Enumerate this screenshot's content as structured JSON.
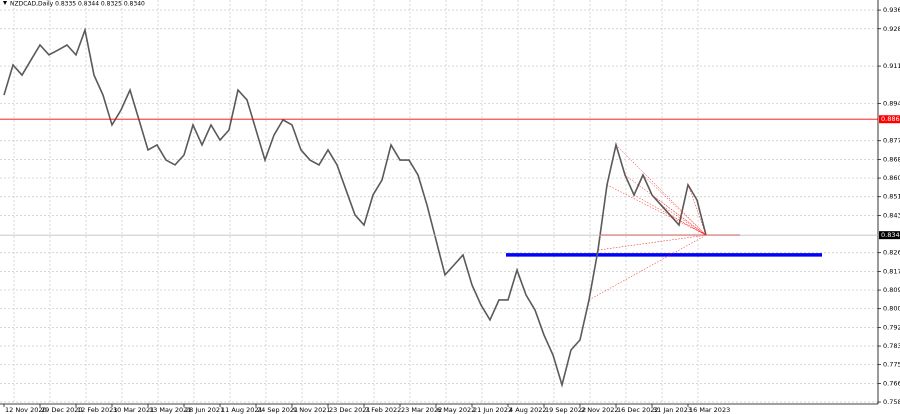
{
  "chart_data": {
    "type": "line",
    "title": "NZDCAD,Daily 0.8335 0.8344 0.8325 0.8340",
    "categories": [
      "12 Nov 2020",
      null,
      null,
      null,
      "29 Dec 2020",
      null,
      null,
      null,
      "12 Feb 2021",
      null,
      null,
      null,
      "30 Mar 2021",
      null,
      null,
      null,
      "13 May 2021",
      null,
      null,
      null,
      "28 Jun 2021",
      null,
      null,
      null,
      "11 Aug 2021",
      null,
      null,
      null,
      "24 Sep 2021",
      null,
      null,
      null,
      "9 Nov 2021",
      null,
      null,
      null,
      "23 Dec 2021",
      null,
      null,
      null,
      "7 Feb 2022",
      null,
      null,
      null,
      "23 Mar 2022",
      null,
      null,
      null,
      "6 May 2022",
      null,
      null,
      null,
      "21 Jun 2022",
      null,
      null,
      null,
      "4 Aug 2022",
      null,
      null,
      null,
      "19 Sep 2022",
      null,
      null,
      null,
      "2 Nov 2022",
      null,
      null,
      null,
      "16 Dec 2022",
      null,
      null,
      null,
      "31 Jan 2023",
      null,
      null,
      null,
      "16 Mar 2023",
      null,
      null
    ],
    "values": [
      0.8978,
      0.9115,
      0.9069,
      0.9138,
      0.9206,
      0.9161,
      0.9183,
      0.9206,
      0.9161,
      0.9274,
      0.9069,
      0.8978,
      0.8842,
      0.891,
      0.9001,
      0.8865,
      0.8728,
      0.8751,
      0.8682,
      0.866,
      0.8705,
      0.8842,
      0.8751,
      0.8842,
      0.8773,
      0.8819,
      0.9001,
      0.8956,
      0.8819,
      0.8682,
      0.8796,
      0.8865,
      0.8842,
      0.8728,
      0.8682,
      0.866,
      0.8728,
      0.866,
      0.8546,
      0.8432,
      0.8386,
      0.8523,
      0.8591,
      0.8751,
      0.8682,
      0.8682,
      0.8614,
      0.8477,
      0.8318,
      0.8159,
      0.8204,
      0.825,
      0.8113,
      0.8022,
      0.7954,
      0.8045,
      0.8045,
      0.8181,
      0.8068,
      0.7999,
      0.7885,
      0.7794,
      0.7658,
      0.7817,
      0.7863,
      0.8045,
      0.8272,
      0.8569,
      0.8751,
      0.8614,
      0.8523,
      0.8614,
      0.8523,
      0.8477,
      0.8432,
      0.8386,
      0.8569,
      0.85,
      0.834
    ],
    "color": "#5a5a5a",
    "ylim": [
      0.7571,
      0.9411
    ],
    "yticks": [
      {
        "value": 0.758,
        "label": "0.7580"
      },
      0.7665,
      {
        "value": 0.775,
        "label": "0.7750"
      },
      0.7835,
      {
        "value": 0.792,
        "label": "0.7920"
      },
      0.8005,
      {
        "value": 0.809,
        "label": "0.8090"
      },
      0.8175,
      {
        "value": 0.826,
        "label": "0.8260"
      },
      {
        "value": 0.843,
        "label": "0.8430"
      },
      0.8515,
      {
        "value": 0.86,
        "label": "0.8600"
      },
      0.8685,
      {
        "value": 0.877,
        "label": "0.8770"
      },
      {
        "value": 0.894,
        "label": "0.8940"
      },
      {
        "value": 0.911,
        "label": "0.9110"
      },
      {
        "value": 0.928,
        "label": "0.9280"
      },
      0.9365
    ],
    "grid": true,
    "price_lines": [
      {
        "value": 0.8868,
        "color": "#ff0000"
      },
      {
        "value": {
          "value": 0.834,
          "label": "0.8340"
        },
        "color": "#c0c0c0"
      }
    ],
    "support_line": {
      "value": 0.825,
      "color": "#0000ff"
    }
  }
}
